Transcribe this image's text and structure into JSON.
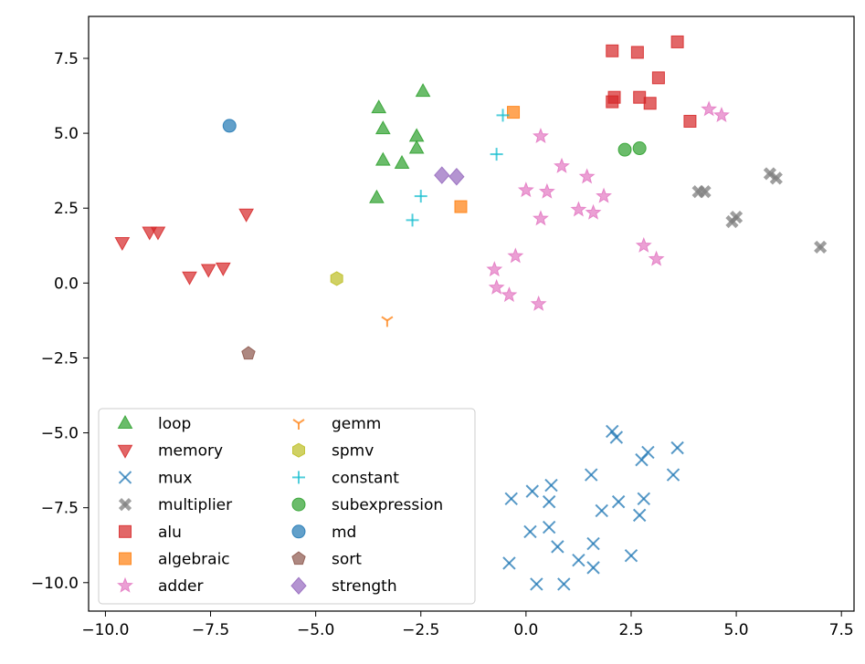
{
  "chart_data": {
    "type": "scatter",
    "title": "",
    "xlabel": "",
    "ylabel": "",
    "xlim": [
      -10.4,
      7.8
    ],
    "ylim": [
      -10.95,
      8.9
    ],
    "xticks": [
      -10.0,
      -7.5,
      -5.0,
      -2.5,
      0.0,
      2.5,
      5.0,
      7.5
    ],
    "yticks": [
      -10.0,
      -7.5,
      -5.0,
      -2.5,
      0.0,
      2.5,
      5.0,
      7.5
    ],
    "xtick_labels": [
      "−10.0",
      "−7.5",
      "−5.0",
      "−2.5",
      "0.0",
      "2.5",
      "5.0",
      "7.5"
    ],
    "ytick_labels": [
      "−10.0",
      "−7.5",
      "−5.0",
      "−2.5",
      "0.0",
      "2.5",
      "5.0",
      "7.5"
    ],
    "grid": false,
    "legend_position": "lower-left",
    "series": [
      {
        "name": "loop",
        "marker": "triangle-up",
        "color": "#2ca02c",
        "points": [
          [
            -3.5,
            5.85
          ],
          [
            -3.4,
            5.15
          ],
          [
            -3.4,
            4.1
          ],
          [
            -2.95,
            4.0
          ],
          [
            -2.6,
            4.9
          ],
          [
            -2.6,
            4.5
          ],
          [
            -2.45,
            6.4
          ],
          [
            -3.55,
            2.85
          ]
        ]
      },
      {
        "name": "memory",
        "marker": "triangle-down",
        "color": "#d62728",
        "points": [
          [
            -9.6,
            1.35
          ],
          [
            -8.95,
            1.7
          ],
          [
            -8.75,
            1.7
          ],
          [
            -6.65,
            2.3
          ],
          [
            -8.0,
            0.2
          ],
          [
            -7.55,
            0.45
          ],
          [
            -7.2,
            0.5
          ]
        ]
      },
      {
        "name": "mux",
        "marker": "x",
        "color": "#1f77b4",
        "points": [
          [
            -0.35,
            -7.2
          ],
          [
            0.15,
            -6.95
          ],
          [
            0.55,
            -7.3
          ],
          [
            0.6,
            -6.75
          ],
          [
            1.55,
            -6.4
          ],
          [
            2.05,
            -4.95
          ],
          [
            2.15,
            -5.15
          ],
          [
            2.75,
            -5.9
          ],
          [
            2.9,
            -5.65
          ],
          [
            3.6,
            -5.5
          ],
          [
            3.5,
            -6.4
          ],
          [
            2.2,
            -7.3
          ],
          [
            2.8,
            -7.2
          ],
          [
            2.7,
            -7.75
          ],
          [
            1.8,
            -7.6
          ],
          [
            0.1,
            -8.3
          ],
          [
            0.55,
            -8.15
          ],
          [
            0.75,
            -8.8
          ],
          [
            1.25,
            -9.25
          ],
          [
            1.6,
            -8.7
          ],
          [
            1.6,
            -9.5
          ],
          [
            2.5,
            -9.1
          ],
          [
            -0.4,
            -9.35
          ],
          [
            0.25,
            -10.05
          ],
          [
            0.9,
            -10.05
          ]
        ]
      },
      {
        "name": "multiplier",
        "marker": "x-filled",
        "color": "#7f7f7f",
        "points": [
          [
            4.1,
            3.05
          ],
          [
            4.25,
            3.05
          ],
          [
            4.9,
            2.05
          ],
          [
            5.0,
            2.2
          ],
          [
            5.8,
            3.65
          ],
          [
            5.95,
            3.5
          ],
          [
            7.0,
            1.2
          ]
        ]
      },
      {
        "name": "alu",
        "marker": "square",
        "color": "#d62728",
        "points": [
          [
            2.05,
            7.75
          ],
          [
            2.65,
            7.7
          ],
          [
            3.6,
            8.05
          ],
          [
            3.15,
            6.85
          ],
          [
            2.1,
            6.2
          ],
          [
            2.05,
            6.05
          ],
          [
            2.7,
            6.2
          ],
          [
            2.95,
            6.0
          ],
          [
            3.9,
            5.4
          ]
        ]
      },
      {
        "name": "algebraic",
        "marker": "square",
        "color": "#ff7f0e",
        "points": [
          [
            -0.3,
            5.7
          ],
          [
            -1.55,
            2.55
          ]
        ]
      },
      {
        "name": "adder",
        "marker": "star",
        "color": "#e377c2",
        "points": [
          [
            0.35,
            4.9
          ],
          [
            4.35,
            5.8
          ],
          [
            4.65,
            5.6
          ],
          [
            0.85,
            3.9
          ],
          [
            1.45,
            3.55
          ],
          [
            1.85,
            2.9
          ],
          [
            0.0,
            3.1
          ],
          [
            0.5,
            3.05
          ],
          [
            1.25,
            2.45
          ],
          [
            1.6,
            2.35
          ],
          [
            0.35,
            2.15
          ],
          [
            2.8,
            1.25
          ],
          [
            3.1,
            0.8
          ],
          [
            -0.25,
            0.9
          ],
          [
            -0.75,
            0.45
          ],
          [
            -0.7,
            -0.15
          ],
          [
            -0.4,
            -0.4
          ],
          [
            0.3,
            -0.7
          ]
        ]
      },
      {
        "name": "gemm",
        "marker": "tri-down",
        "color": "#ff7f0e",
        "points": [
          [
            -3.3,
            -1.25
          ]
        ]
      },
      {
        "name": "spmv",
        "marker": "hexagon",
        "color": "#bcbd22",
        "points": [
          [
            -4.5,
            0.15
          ]
        ]
      },
      {
        "name": "constant",
        "marker": "plus",
        "color": "#17becf",
        "points": [
          [
            -0.55,
            5.6
          ],
          [
            -0.7,
            4.3
          ],
          [
            -2.5,
            2.9
          ],
          [
            -2.7,
            2.1
          ]
        ]
      },
      {
        "name": "subexpression",
        "marker": "circle",
        "color": "#2ca02c",
        "points": [
          [
            2.35,
            4.45
          ],
          [
            2.7,
            4.5
          ]
        ]
      },
      {
        "name": "md",
        "marker": "circle",
        "color": "#1f77b4",
        "points": [
          [
            -7.05,
            5.25
          ]
        ]
      },
      {
        "name": "sort",
        "marker": "pentagon",
        "color": "#8c564b",
        "points": [
          [
            -6.6,
            -2.35
          ]
        ]
      },
      {
        "name": "strength",
        "marker": "diamond",
        "color": "#9467bd",
        "points": [
          [
            -2.0,
            3.6
          ],
          [
            -1.65,
            3.55
          ]
        ]
      }
    ]
  }
}
